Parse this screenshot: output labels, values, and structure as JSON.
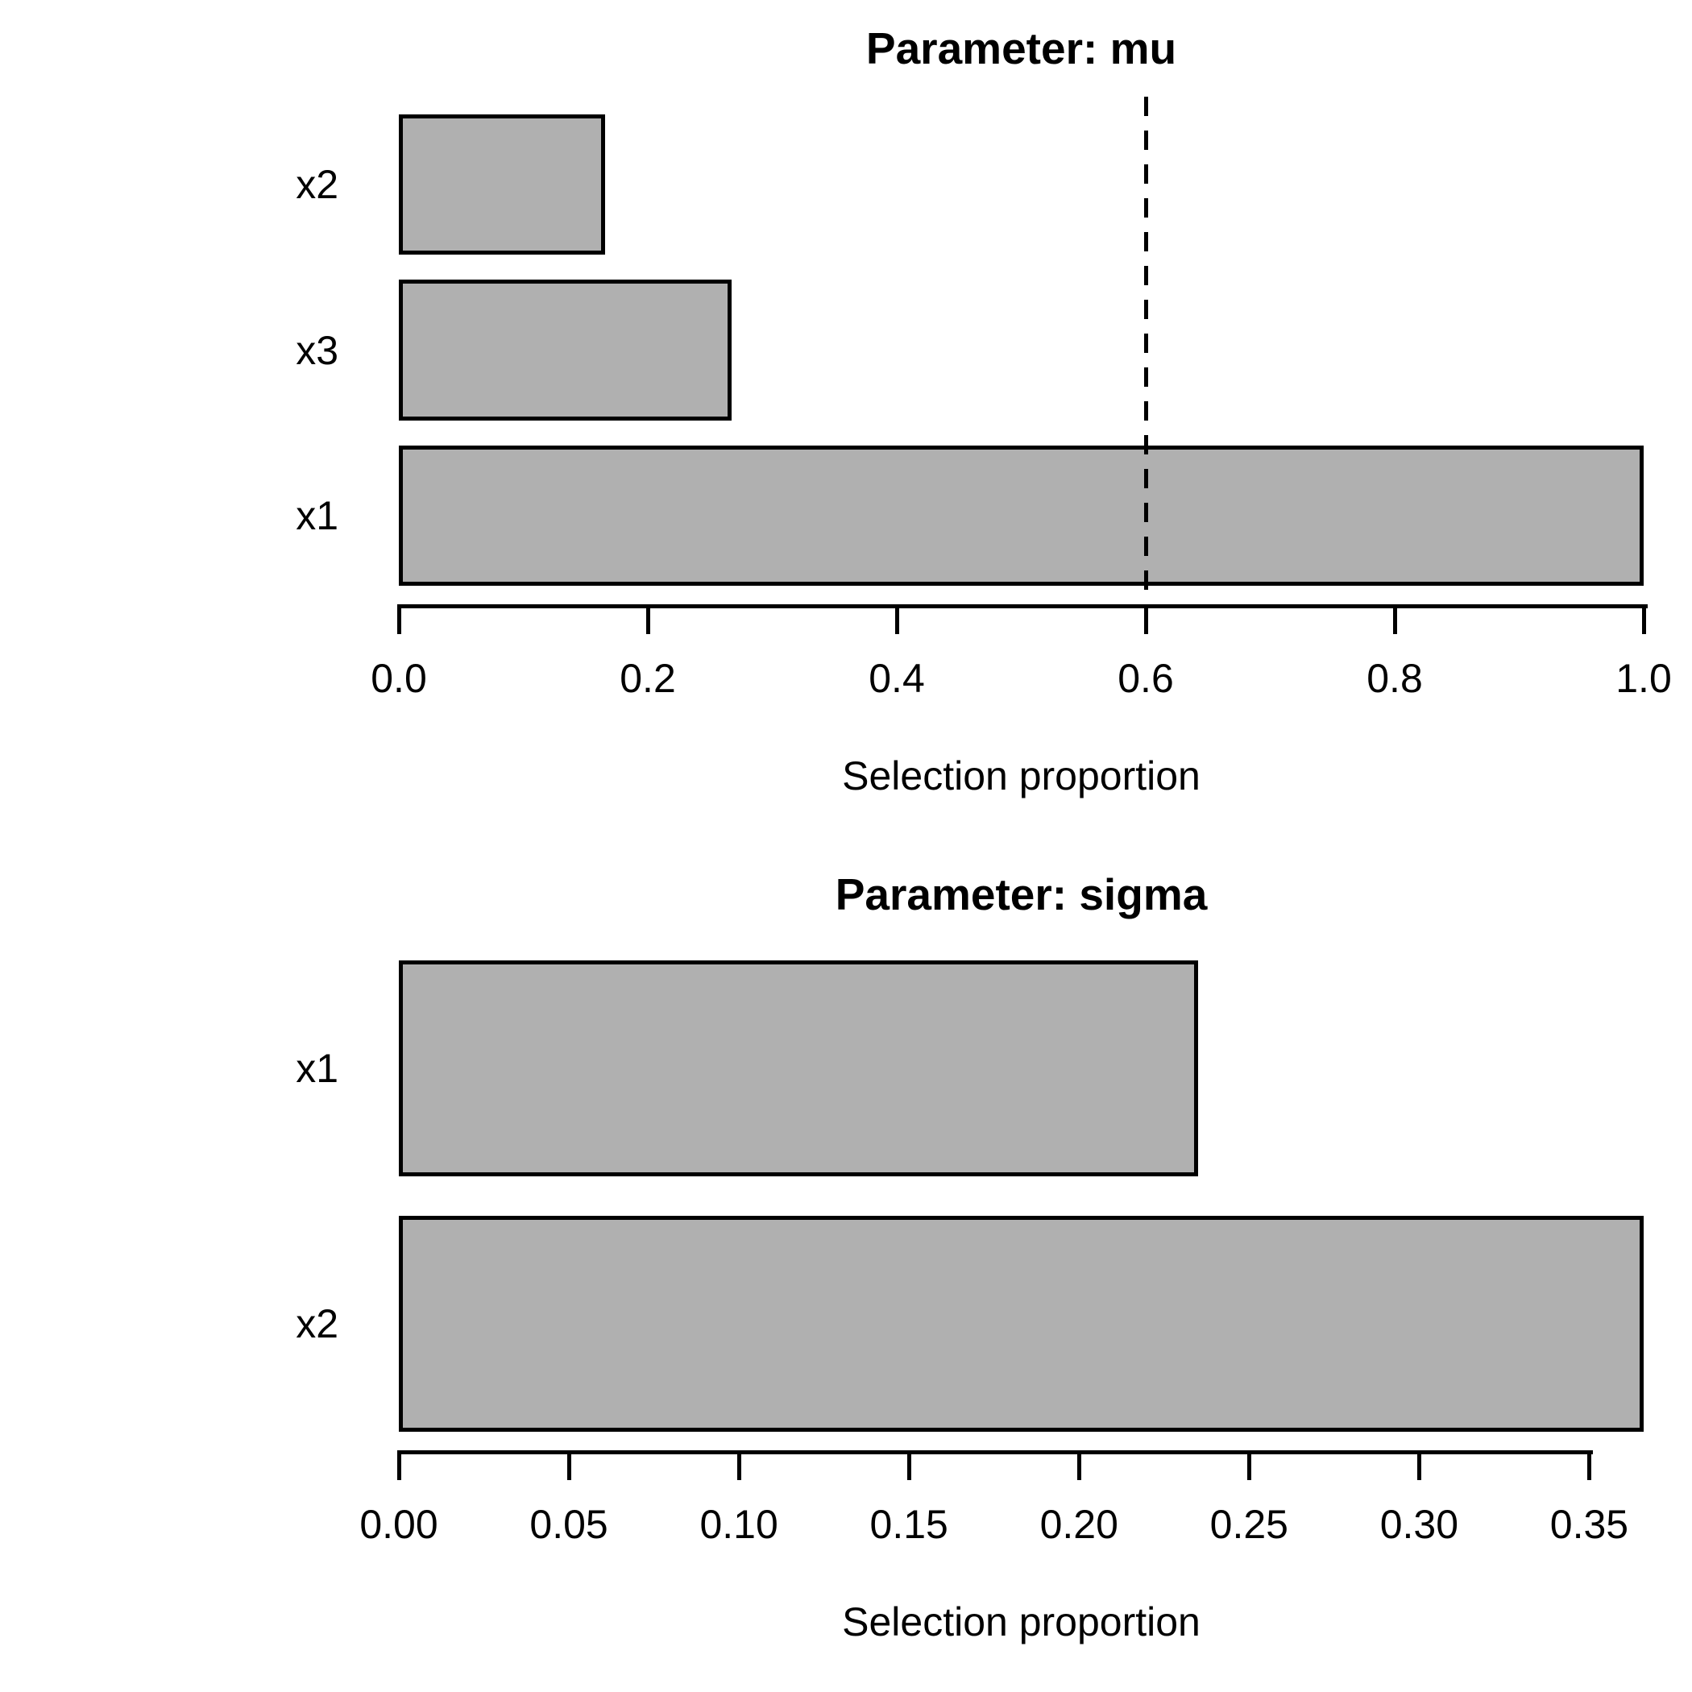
{
  "figure": {
    "background": "#ffffff",
    "text_color": "#000000"
  },
  "chart_data": [
    {
      "type": "bar",
      "orientation": "horizontal",
      "title": "Parameter: mu",
      "xlabel": "Selection proportion",
      "categories": [
        "x2",
        "x3",
        "x1"
      ],
      "values": [
        0.166,
        0.267,
        1.0
      ],
      "xlim": [
        0,
        1.0
      ],
      "tick_values": [
        0.0,
        0.2,
        0.4,
        0.6,
        0.8,
        1.0
      ],
      "tick_labels": [
        "0.0",
        "0.2",
        "0.4",
        "0.6",
        "0.8",
        "1.0"
      ],
      "threshold": 0.6,
      "threshold_style": "dashed",
      "bar_fill": "#b0b0b0",
      "bar_border": "#000000",
      "grid": false,
      "legend": false
    },
    {
      "type": "bar",
      "orientation": "horizontal",
      "title": "Parameter: sigma",
      "xlabel": "Selection proportion",
      "categories": [
        "x1",
        "x2"
      ],
      "values": [
        0.235,
        0.366
      ],
      "xlim": [
        0,
        0.366
      ],
      "tick_values": [
        0.0,
        0.05,
        0.1,
        0.15,
        0.2,
        0.25,
        0.3,
        0.35
      ],
      "tick_labels": [
        "0.00",
        "0.05",
        "0.10",
        "0.15",
        "0.20",
        "0.25",
        "0.30",
        "0.35"
      ],
      "threshold": null,
      "threshold_style": null,
      "bar_fill": "#b0b0b0",
      "bar_border": "#000000",
      "grid": false,
      "legend": false
    }
  ]
}
